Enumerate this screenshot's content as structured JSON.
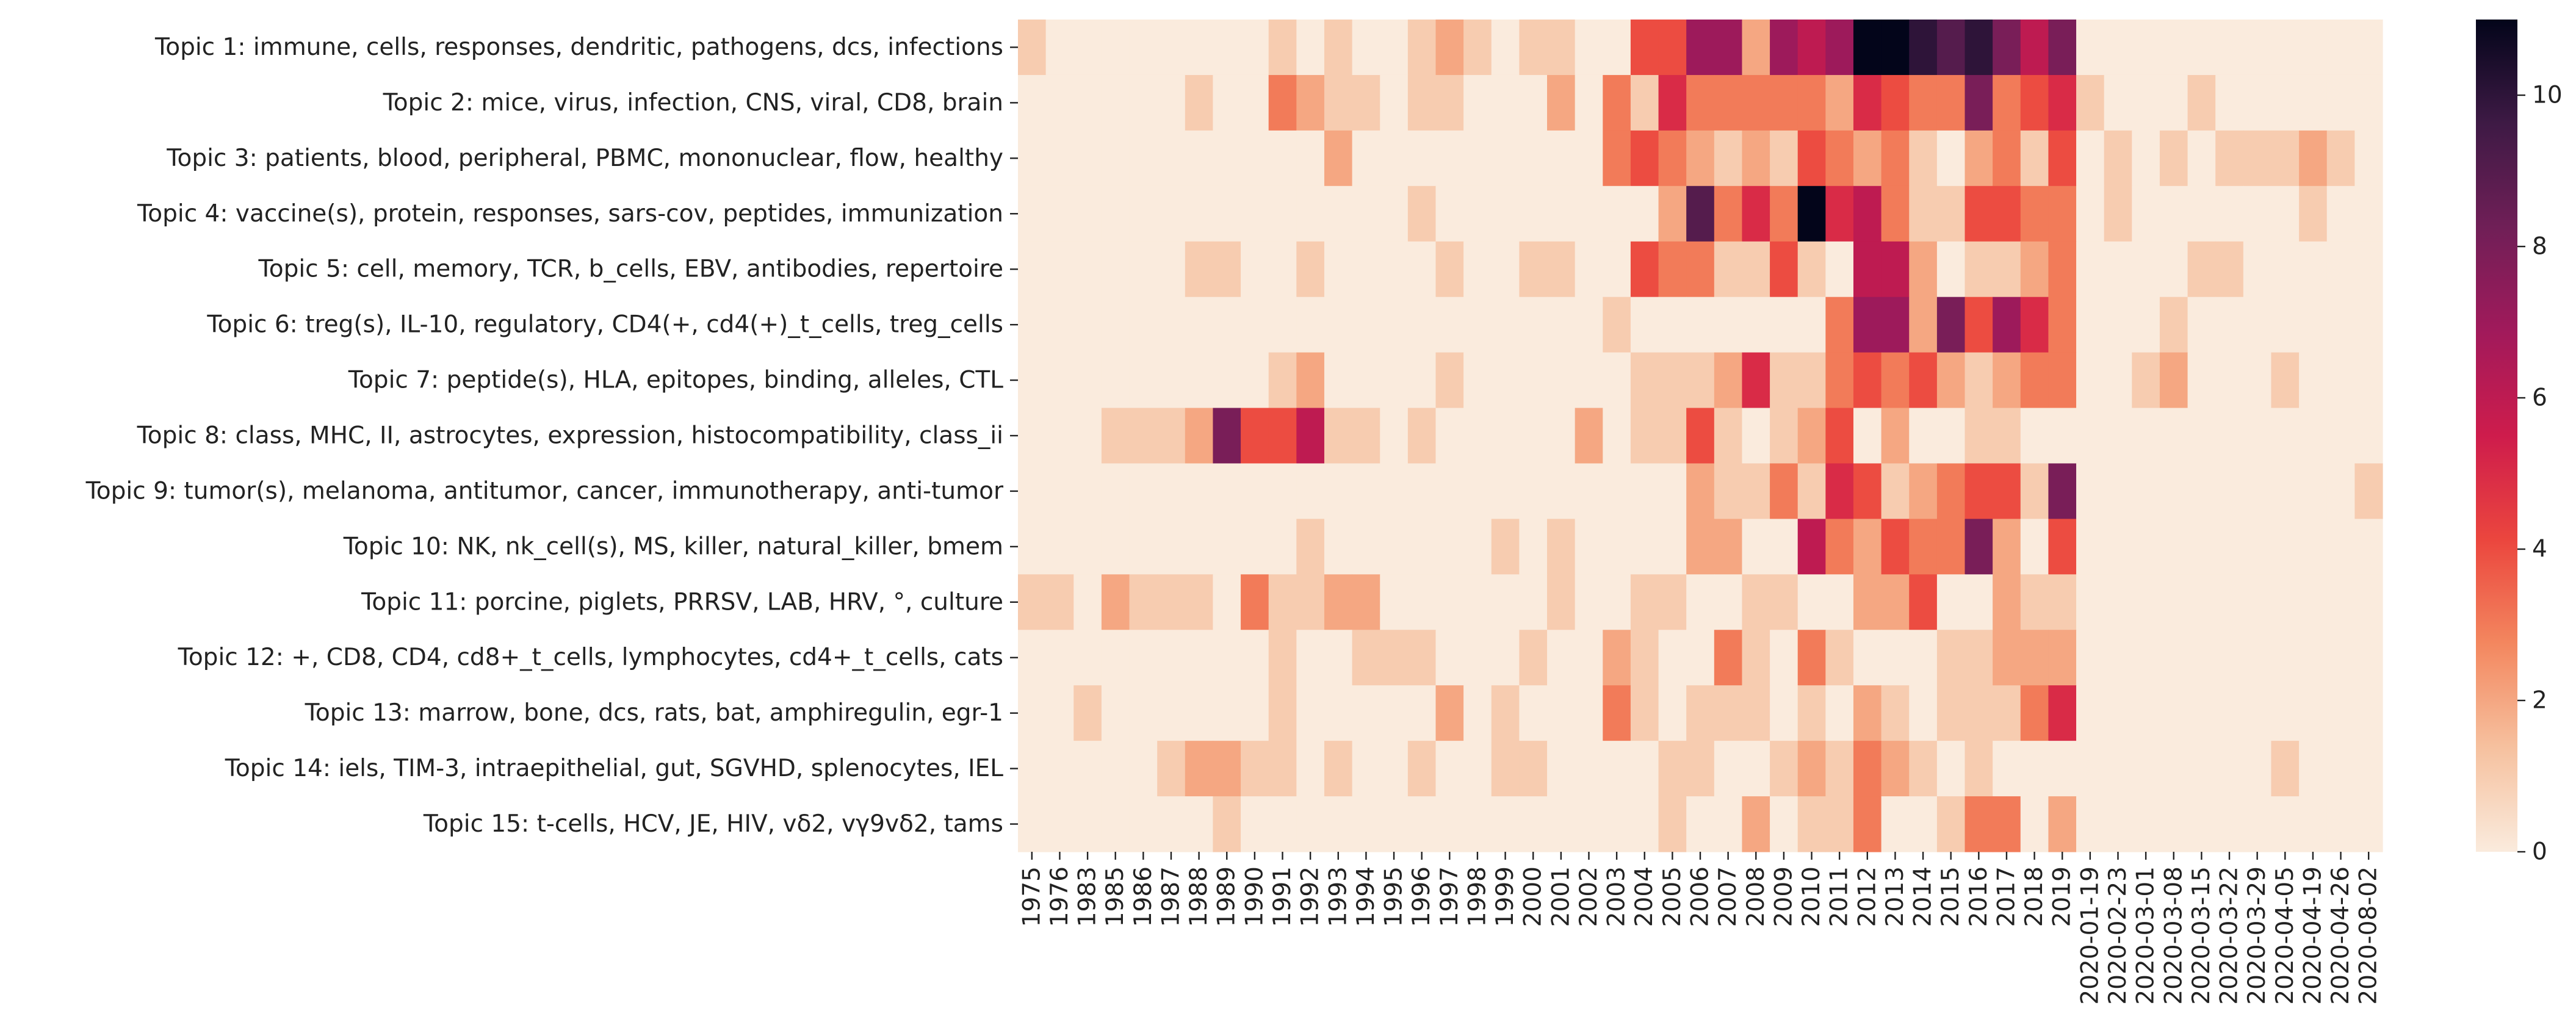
{
  "chart_data": {
    "type": "heatmap",
    "title": "",
    "xlabel": "",
    "ylabel": "",
    "x_categories": [
      "1975",
      "1976",
      "1983",
      "1985",
      "1986",
      "1987",
      "1988",
      "1989",
      "1990",
      "1991",
      "1992",
      "1993",
      "1994",
      "1995",
      "1996",
      "1997",
      "1998",
      "1999",
      "2000",
      "2001",
      "2002",
      "2003",
      "2004",
      "2005",
      "2006",
      "2007",
      "2008",
      "2009",
      "2010",
      "2011",
      "2012",
      "2013",
      "2014",
      "2015",
      "2016",
      "2017",
      "2018",
      "2019",
      "2020-01-19",
      "2020-02-23",
      "2020-03-01",
      "2020-03-08",
      "2020-03-15",
      "2020-03-22",
      "2020-03-29",
      "2020-04-05",
      "2020-04-19",
      "2020-04-26",
      "2020-08-02"
    ],
    "y_categories": [
      "Topic 1: immune, cells, responses, dendritic, pathogens, dcs, infections",
      "Topic 2: mice, virus, infection, CNS, viral, CD8, brain",
      "Topic 3: patients, blood, peripheral, PBMC, mononuclear, flow, healthy",
      "Topic 4: vaccine(s), protein, responses, sars-cov, peptides, immunization",
      "Topic 5: cell, memory, TCR, b_cells, EBV, antibodies, repertoire",
      "Topic 6: treg(s), IL-10, regulatory, CD4(+, cd4(+)_t_cells, treg_cells",
      "Topic 7: peptide(s), HLA, epitopes, binding, alleles, CTL",
      "Topic 8: class, MHC, II, astrocytes, expression, histocompatibility, class_ii",
      "Topic 9: tumor(s), melanoma, antitumor, cancer, immunotherapy, anti-tumor",
      "Topic 10: NK, nk_cell(s), MS, killer, natural_killer, bmem",
      "Topic 11: porcine, piglets, PRRSV, LAB, HRV, °, culture",
      "Topic 12: +, CD8, CD4, cd8+_t_cells, lymphocytes, cd4+_t_cells, cats",
      "Topic 13: marrow, bone, dcs, rats, bat, amphiregulin, egr-1",
      "Topic 14: iels, TIM-3, intraepithelial, gut, SGVHD, splenocytes, IEL",
      "Topic 15: t-cells, HCV, JE, HIV, vδ2, vγ9vδ2, tams"
    ],
    "values": [
      [
        1,
        0,
        0,
        0,
        0,
        0,
        0,
        0,
        0,
        1,
        0,
        1,
        0,
        0,
        1,
        2,
        1,
        0,
        1,
        1,
        0,
        0,
        4,
        4,
        7,
        7,
        2,
        7,
        6,
        7,
        11,
        11,
        10,
        9,
        10,
        8,
        6,
        8,
        0,
        0,
        0,
        0,
        0,
        0,
        0,
        0,
        0,
        0,
        0
      ],
      [
        0,
        0,
        0,
        0,
        0,
        0,
        1,
        0,
        0,
        3,
        2,
        1,
        1,
        0,
        1,
        1,
        0,
        0,
        0,
        2,
        0,
        3,
        1,
        5,
        3,
        3,
        3,
        3,
        3,
        2,
        5,
        4,
        3,
        3,
        8,
        3,
        4,
        5,
        1,
        0,
        0,
        0,
        1,
        0,
        0,
        0,
        0,
        0,
        0
      ],
      [
        0,
        0,
        0,
        0,
        0,
        0,
        0,
        0,
        0,
        0,
        0,
        2,
        0,
        0,
        0,
        0,
        0,
        0,
        0,
        0,
        0,
        3,
        4,
        3,
        2,
        1,
        2,
        1,
        4,
        3,
        2,
        3,
        1,
        0,
        2,
        3,
        1,
        4,
        0,
        1,
        0,
        1,
        0,
        1,
        1,
        1,
        2,
        1,
        0
      ],
      [
        0,
        0,
        0,
        0,
        0,
        0,
        0,
        0,
        0,
        0,
        0,
        0,
        0,
        0,
        1,
        0,
        0,
        0,
        0,
        0,
        0,
        0,
        0,
        2,
        9,
        3,
        5,
        3,
        11,
        5,
        6,
        3,
        1,
        1,
        4,
        4,
        3,
        3,
        0,
        1,
        0,
        0,
        0,
        0,
        0,
        0,
        1,
        0,
        0
      ],
      [
        0,
        0,
        0,
        0,
        0,
        0,
        1,
        1,
        0,
        0,
        1,
        0,
        0,
        0,
        0,
        1,
        0,
        0,
        1,
        1,
        0,
        0,
        4,
        3,
        3,
        1,
        1,
        4,
        1,
        0,
        6,
        6,
        2,
        0,
        1,
        1,
        2,
        3,
        0,
        0,
        0,
        0,
        1,
        1,
        0,
        0,
        0,
        0,
        0
      ],
      [
        0,
        0,
        0,
        0,
        0,
        0,
        0,
        0,
        0,
        0,
        0,
        0,
        0,
        0,
        0,
        0,
        0,
        0,
        0,
        0,
        0,
        1,
        0,
        0,
        0,
        0,
        0,
        0,
        0,
        3,
        7,
        7,
        2,
        8,
        4,
        7,
        5,
        3,
        0,
        0,
        0,
        1,
        0,
        0,
        0,
        0,
        0,
        0,
        0
      ],
      [
        0,
        0,
        0,
        0,
        0,
        0,
        0,
        0,
        0,
        1,
        2,
        0,
        0,
        0,
        0,
        1,
        0,
        0,
        0,
        0,
        0,
        0,
        1,
        1,
        1,
        2,
        5,
        1,
        1,
        3,
        4,
        3,
        4,
        2,
        1,
        2,
        3,
        3,
        0,
        0,
        1,
        2,
        0,
        0,
        0,
        1,
        0,
        0,
        0
      ],
      [
        0,
        0,
        0,
        1,
        1,
        1,
        2,
        8,
        4,
        4,
        6,
        1,
        1,
        0,
        1,
        0,
        0,
        0,
        0,
        0,
        2,
        0,
        1,
        1,
        4,
        1,
        0,
        1,
        2,
        4,
        0,
        2,
        0,
        0,
        1,
        1,
        0,
        0,
        0,
        0,
        0,
        0,
        0,
        0,
        0,
        0,
        0,
        0,
        0
      ],
      [
        0,
        0,
        0,
        0,
        0,
        0,
        0,
        0,
        0,
        0,
        0,
        0,
        0,
        0,
        0,
        0,
        0,
        0,
        0,
        0,
        0,
        0,
        0,
        0,
        2,
        1,
        1,
        3,
        1,
        5,
        4,
        1,
        2,
        3,
        4,
        4,
        1,
        8,
        0,
        0,
        0,
        0,
        0,
        0,
        0,
        0,
        0,
        0,
        1
      ],
      [
        0,
        0,
        0,
        0,
        0,
        0,
        0,
        0,
        0,
        0,
        1,
        0,
        0,
        0,
        0,
        0,
        0,
        1,
        0,
        1,
        0,
        0,
        0,
        0,
        2,
        2,
        0,
        0,
        6,
        3,
        2,
        4,
        3,
        3,
        8,
        2,
        0,
        4,
        0,
        0,
        0,
        0,
        0,
        0,
        0,
        0,
        0,
        0,
        0
      ],
      [
        1,
        1,
        0,
        2,
        1,
        1,
        1,
        0,
        3,
        1,
        1,
        2,
        2,
        0,
        0,
        0,
        0,
        0,
        0,
        1,
        0,
        0,
        1,
        1,
        0,
        0,
        1,
        1,
        0,
        0,
        2,
        2,
        4,
        0,
        0,
        2,
        1,
        1,
        0,
        0,
        0,
        0,
        0,
        0,
        0,
        0,
        0,
        0,
        0
      ],
      [
        0,
        0,
        0,
        0,
        0,
        0,
        0,
        0,
        0,
        1,
        0,
        0,
        1,
        1,
        1,
        0,
        0,
        0,
        1,
        0,
        0,
        2,
        1,
        0,
        0,
        3,
        1,
        0,
        3,
        1,
        0,
        0,
        0,
        1,
        1,
        2,
        2,
        2,
        0,
        0,
        0,
        0,
        0,
        0,
        0,
        0,
        0,
        0,
        0
      ],
      [
        0,
        0,
        1,
        0,
        0,
        0,
        0,
        0,
        0,
        1,
        0,
        0,
        0,
        0,
        0,
        2,
        0,
        1,
        0,
        0,
        0,
        3,
        1,
        0,
        1,
        1,
        1,
        0,
        1,
        0,
        2,
        1,
        0,
        1,
        1,
        1,
        3,
        5,
        0,
        0,
        0,
        0,
        0,
        0,
        0,
        0,
        0,
        0,
        0
      ],
      [
        0,
        0,
        0,
        0,
        0,
        1,
        2,
        2,
        1,
        1,
        0,
        1,
        0,
        0,
        1,
        0,
        0,
        1,
        1,
        0,
        0,
        0,
        0,
        1,
        1,
        0,
        0,
        1,
        2,
        1,
        3,
        2,
        1,
        0,
        1,
        0,
        0,
        0,
        0,
        0,
        0,
        0,
        0,
        0,
        0,
        1,
        0,
        0,
        0
      ],
      [
        0,
        0,
        0,
        0,
        0,
        0,
        0,
        1,
        0,
        0,
        0,
        0,
        0,
        0,
        0,
        0,
        0,
        0,
        0,
        0,
        0,
        0,
        0,
        1,
        0,
        0,
        2,
        0,
        1,
        1,
        3,
        0,
        0,
        1,
        3,
        3,
        0,
        2,
        0,
        0,
        0,
        0,
        0,
        0,
        0,
        0,
        0,
        0,
        0
      ]
    ],
    "color_scale": {
      "min": 0,
      "max": 11,
      "ticks": [
        0,
        2,
        4,
        6,
        8,
        10
      ]
    },
    "colormap_stops": [
      "#faebdd",
      "#f6c19f",
      "#f3875f",
      "#eb463e",
      "#ce1c4c",
      "#a11a5b",
      "#701f57",
      "#3e1a45",
      "#03051a"
    ],
    "grid": false,
    "legend": "colorbar-right"
  }
}
